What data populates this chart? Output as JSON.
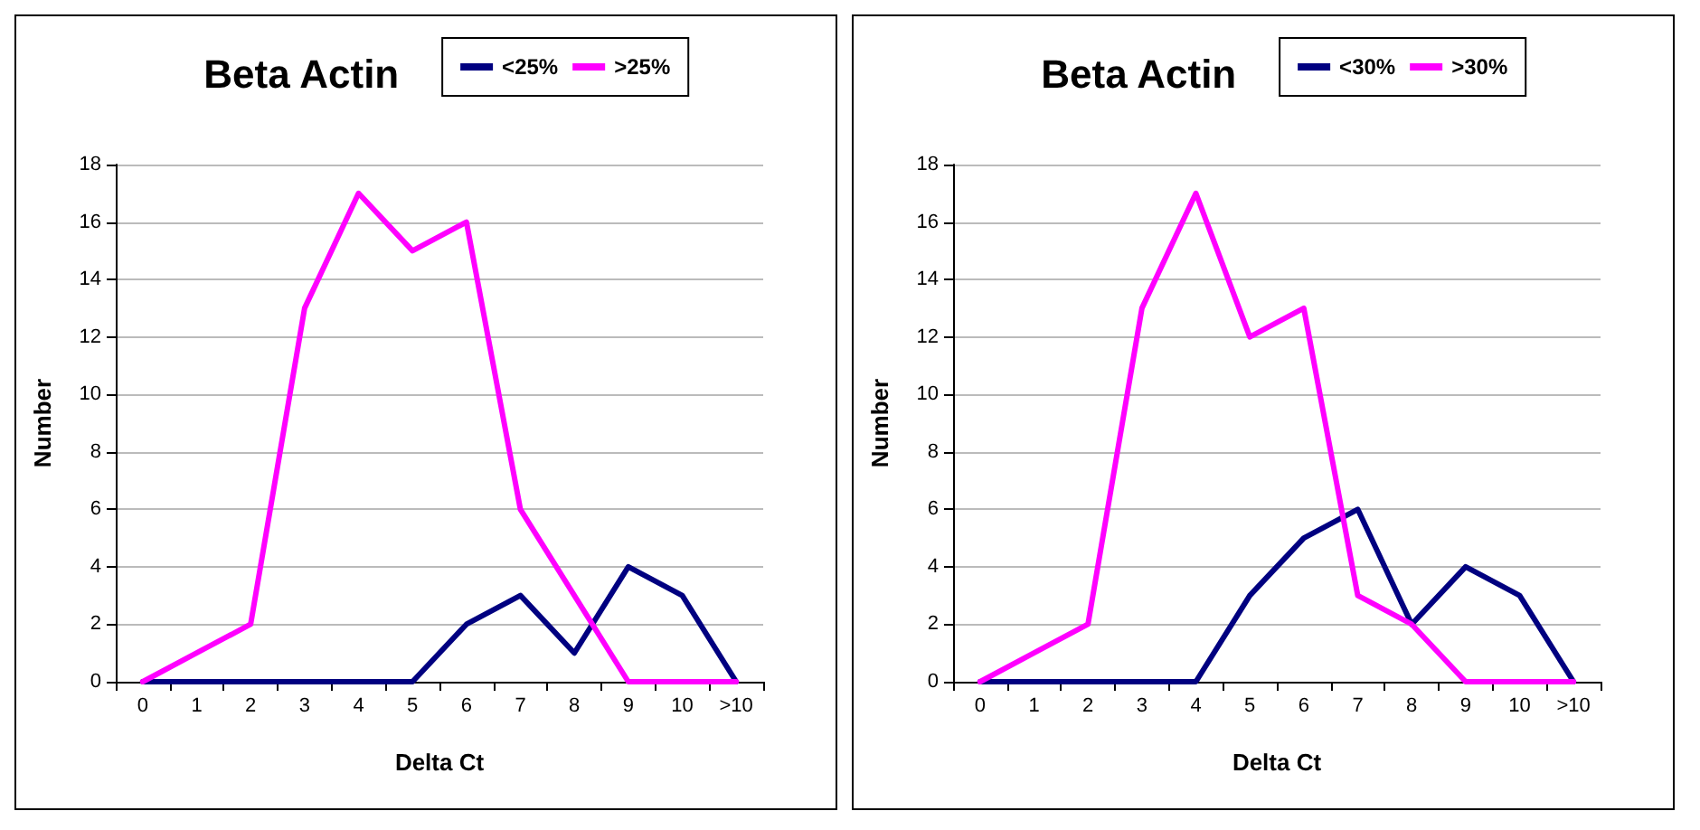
{
  "chart_data": [
    {
      "type": "line",
      "title": "Beta Actin",
      "xlabel": "Delta Ct",
      "ylabel": "Number",
      "categories": [
        "0",
        "1",
        "2",
        "3",
        "4",
        "5",
        "6",
        "7",
        "8",
        "9",
        "10",
        ">10"
      ],
      "series": [
        {
          "name": "<25%",
          "color": "#000080",
          "values": [
            0,
            0,
            0,
            0,
            0,
            0,
            2,
            3,
            1,
            4,
            3,
            0
          ]
        },
        {
          "name": ">25%",
          "color": "#ff00ff",
          "values": [
            0,
            1,
            2,
            13,
            17,
            15,
            16,
            6,
            3,
            0,
            0,
            0
          ]
        }
      ],
      "ylim": [
        0,
        18
      ],
      "yticks": [
        0,
        2,
        4,
        6,
        8,
        10,
        12,
        14,
        16,
        18
      ],
      "grid": "y",
      "legend": "top",
      "marker": "none",
      "line_style": "solid"
    },
    {
      "type": "line",
      "title": "Beta Actin",
      "xlabel": "Delta Ct",
      "ylabel": "Number",
      "categories": [
        "0",
        "1",
        "2",
        "3",
        "4",
        "5",
        "6",
        "7",
        "8",
        "9",
        "10",
        ">10"
      ],
      "series": [
        {
          "name": "<30%",
          "color": "#000080",
          "values": [
            0,
            0,
            0,
            0,
            0,
            3,
            5,
            6,
            2,
            4,
            3,
            0
          ]
        },
        {
          "name": ">30%",
          "color": "#ff00ff",
          "values": [
            0,
            1,
            2,
            13,
            17,
            12,
            13,
            3,
            2,
            0,
            0,
            0
          ]
        }
      ],
      "ylim": [
        0,
        18
      ],
      "yticks": [
        0,
        2,
        4,
        6,
        8,
        10,
        12,
        14,
        16,
        18
      ],
      "grid": "y",
      "legend": "top",
      "marker": "none",
      "line_style": "solid"
    }
  ]
}
